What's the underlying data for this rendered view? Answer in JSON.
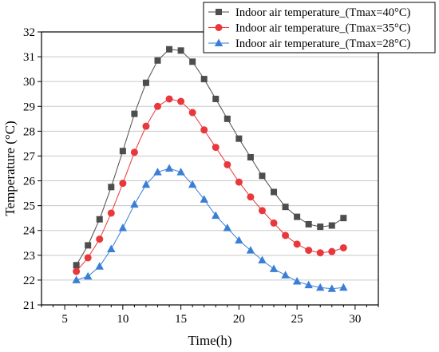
{
  "chart_data": {
    "type": "line",
    "xlabel": "Time(h)",
    "ylabel": "Temperature (°C)",
    "xlim": [
      3,
      32
    ],
    "ylim": [
      21,
      32
    ],
    "xticks": [
      5,
      10,
      15,
      20,
      25,
      30
    ],
    "yticks": [
      21,
      22,
      23,
      24,
      25,
      26,
      27,
      28,
      29,
      30,
      31,
      32
    ],
    "grid": "horizontal",
    "legend_position": "top-right",
    "x": [
      6,
      7,
      8,
      9,
      10,
      11,
      12,
      13,
      14,
      15,
      16,
      17,
      18,
      19,
      20,
      21,
      22,
      23,
      24,
      25,
      26,
      27,
      28,
      29
    ],
    "series": [
      {
        "name": "Indoor air temperature_(Tmax=40°C)",
        "color": "#4d4d4d",
        "marker": "square",
        "values": [
          22.6,
          23.4,
          24.45,
          25.75,
          27.2,
          28.7,
          29.95,
          30.85,
          31.3,
          31.25,
          30.8,
          30.1,
          29.3,
          28.5,
          27.7,
          26.95,
          26.2,
          25.55,
          24.95,
          24.55,
          24.25,
          24.15,
          24.2,
          24.5
        ]
      },
      {
        "name": "Indoor air temperature_(Tmax=35°C)",
        "color": "#e8383b",
        "marker": "circle",
        "values": [
          22.35,
          22.9,
          23.65,
          24.7,
          25.9,
          27.15,
          28.2,
          29.0,
          29.3,
          29.2,
          28.75,
          28.05,
          27.35,
          26.65,
          25.95,
          25.35,
          24.8,
          24.3,
          23.8,
          23.45,
          23.2,
          23.1,
          23.15,
          23.3
        ]
      },
      {
        "name": "Indoor air temperature_(Tmax=28°C)",
        "color": "#3a7fd6",
        "marker": "triangle",
        "values": [
          22.0,
          22.15,
          22.55,
          23.25,
          24.1,
          25.05,
          25.85,
          26.35,
          26.5,
          26.35,
          25.85,
          25.25,
          24.6,
          24.1,
          23.6,
          23.2,
          22.8,
          22.45,
          22.2,
          21.95,
          21.8,
          21.7,
          21.65,
          21.7
        ]
      }
    ]
  }
}
